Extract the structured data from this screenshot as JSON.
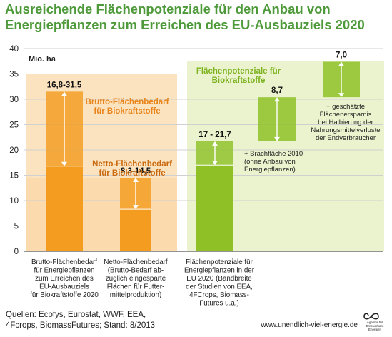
{
  "title_lines": [
    "Ausreichende Flächenpotenziale für den Anbau von",
    "Energiepflanzen zum Erreichen des EU-Ausbauziels 2020"
  ],
  "chart_data": {
    "type": "bar",
    "ylabel": "Mio. ha",
    "ylim": [
      0,
      40
    ],
    "yticks": [
      "0",
      "5",
      "10",
      "15",
      "20",
      "25",
      "30",
      "35",
      "40"
    ],
    "grid": true,
    "categories": [
      "Brutto-Flächenbedarf für Energiepflanzen zum Erreichen des EU-Ausbauziels für Biokraftstoffe 2020",
      "Netto-Flächenbedarf (Brutto-Bedarf abzüglich eingesparte Flächen für Futtermittelproduktion)",
      "Flächenpotenziale für Energiepflanzen in der EU 2020 (Bandbreite der Studien von EEA, 4FCrops, Biomass-Futures u.a.)"
    ],
    "category_label_lines": [
      [
        "Brutto-Flächenbedarf",
        "für Energiepflanzen",
        "zum Erreichen des",
        "EU-Ausbauziels",
        "für Biokraftstoffe 2020"
      ],
      [
        "Netto-Flächenbedarf",
        "(Brutto-Bedarf  ab-",
        "züglich eingesparte",
        "Flächen für Futter-",
        "mittelproduktion)"
      ],
      [
        "Flächenpotenziale für",
        "Energiepflanzen in der",
        "EU 2020 (Bandbreite",
        "der Studien von EEA,",
        "4FCrops, Biomass-",
        "Futures u.a.)"
      ]
    ],
    "bars": [
      {
        "low": 16.8,
        "high": 31.5,
        "label": "16,8-31,5",
        "color": "#f39c1f"
      },
      {
        "low": 8.3,
        "high": 14.5,
        "label": "8,3-14,5",
        "color": "#f39c1f"
      },
      {
        "low": 17,
        "high": 21.7,
        "label": "17 - 21,7",
        "color": "#8fc127"
      }
    ],
    "steps": [
      {
        "low": 21.7,
        "high": 30.4,
        "value": 8.7,
        "label": "8,7",
        "color": "#8fc127",
        "note_lines": [
          "+ Brachfläche 2010",
          "(ohne Anbau von",
          "Energiepflanzen)"
        ]
      },
      {
        "low": 30.4,
        "high": 37.4,
        "value": 7.0,
        "label": "7,0",
        "color": "#8fc127",
        "note_lines": [
          "+ geschätzte",
          "Flächenersparnis",
          "bei Halbierung der",
          "Nahrungsmittelverluste",
          "der Endverbraucher"
        ]
      }
    ],
    "annotations": {
      "brutto_lines": [
        "Brutto-Flächenbedarf",
        "für Biokraftstoffe"
      ],
      "netto_lines": [
        "Netto-Flächenbedarf",
        "für Biokraftstoffe"
      ],
      "potential_lines": [
        "Flächenpotenziale für",
        "Biokraftstoffe"
      ]
    },
    "colors": {
      "orange_band": "#fce3bf",
      "green_band": "#eaf3cd",
      "brutto_text": "#e8841a",
      "potential_text": "#7db21f",
      "grid": "#d0d0d0"
    }
  },
  "footer": {
    "sources_lines": [
      "Quellen: Ecofys, Eurostat, WWF, EEA,",
      "4Fcrops, BiomassFutures; Stand: 8/2013"
    ],
    "url": "www.unendlich-viel-energie.de",
    "logo_text": "Agentur für Erneuerbare Energien"
  }
}
